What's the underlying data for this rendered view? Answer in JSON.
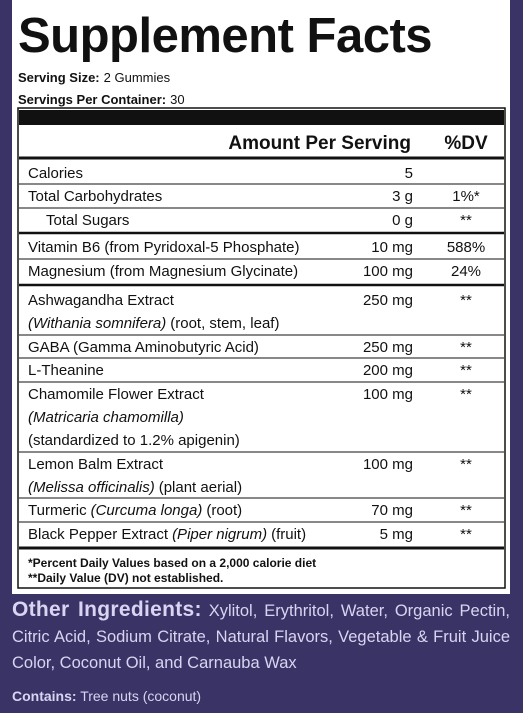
{
  "header": {
    "title": "Supplement Facts",
    "serving_size_label": "Serving Size:",
    "serving_size": "2 Gummies",
    "servings_label": "Servings Per Container:",
    "servings": "30"
  },
  "table": {
    "columns": [
      "Amount Per Serving",
      "%DV"
    ],
    "rows": [
      {
        "name": "Calories",
        "amount": "5"
      },
      {
        "name": "Total Carbohydrates",
        "amount": "3 g",
        "dv": "1%*"
      },
      {
        "name": "Total Sugars",
        "amount": "0 g",
        "dv": "**"
      },
      {
        "name": "Vitamin B6 (from Pyridoxal-5 Phosphate)",
        "amount": "10 mg",
        "dv": "588%"
      },
      {
        "name": "Magnesium (from Magnesium Glycinate)",
        "amount": "100 mg",
        "dv": "24%"
      },
      {
        "name": "Ashwagandha Extract",
        "latin": "(Withania somnifera)",
        "part": "(root, stem, leaf)",
        "amount": "250 mg",
        "dv": "**"
      },
      {
        "name": "GABA (Gamma Aminobutyric Acid)",
        "amount": "250 mg",
        "dv": "**"
      },
      {
        "name": "L-Theanine",
        "amount": "200 mg",
        "dv": "**"
      },
      {
        "name": "Chamomile Flower Extract",
        "latin": "(Matricaria chamomilla)",
        "part": "(standardized to 1.2% apigenin)",
        "amount": "100 mg",
        "dv": "**"
      },
      {
        "name": "Lemon Balm Extract",
        "latin": "(Melissa officinalis)",
        "part": "(plant aerial)",
        "amount": "100 mg",
        "dv": "**"
      },
      {
        "name": "Turmeric",
        "latin": "(Curcuma longa)",
        "part": "(root)",
        "amount": "70 mg",
        "dv": "**"
      },
      {
        "name": "Black Pepper Extract",
        "latin": "(Piper nigrum)",
        "part": "(fruit)",
        "amount": "5 mg",
        "dv": "**"
      }
    ],
    "footnotes": [
      "*Percent Daily Values based on a 2,000 calorie diet",
      "**Daily Value (DV) not established."
    ]
  },
  "other_ingredients": {
    "label": "Other Ingredients:",
    "text": "Xylitol, Erythritol, Water, Organic Pectin, Citric Acid, Sodium Citrate, Natural Flavors, Vegetable & Fruit Juice Color, Coconut Oil, and Carnauba Wax"
  },
  "contains": {
    "label": "Contains:",
    "text": "Tree nuts (coconut)"
  }
}
